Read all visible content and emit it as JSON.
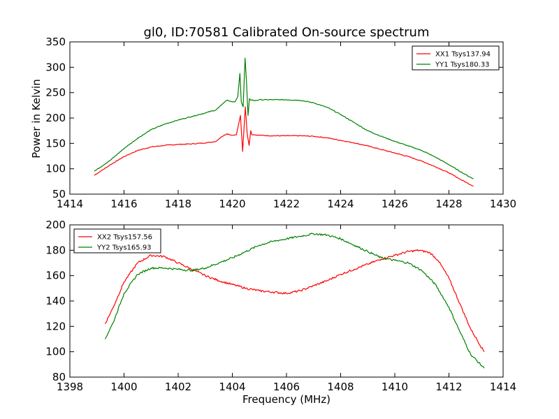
{
  "figure": {
    "title": "gl0, ID:70581 Calibrated On-source spectrum",
    "xlabel": "Frequency (MHz)",
    "ylabel": "Power in Kelvin"
  },
  "chart_data": [
    {
      "type": "line",
      "title": "gl0, ID:70581 Calibrated On-source spectrum",
      "xlabel": "",
      "ylabel": "Power in Kelvin",
      "xlim": [
        1414,
        1430
      ],
      "ylim": [
        50,
        350
      ],
      "xticks": [
        1414,
        1416,
        1418,
        1420,
        1422,
        1424,
        1426,
        1428,
        1430
      ],
      "yticks": [
        50,
        100,
        150,
        200,
        250,
        300,
        350
      ],
      "grid": false,
      "legend_position": "top-right",
      "series": [
        {
          "name": "XX1 Tsys137.94",
          "color": "#ff0000",
          "x": [
            1414.9,
            1415.5,
            1416.0,
            1416.5,
            1417.0,
            1417.5,
            1418.0,
            1418.5,
            1419.0,
            1419.4,
            1419.6,
            1419.8,
            1420.0,
            1420.15,
            1420.3,
            1420.38,
            1420.42,
            1420.48,
            1420.55,
            1420.62,
            1420.68,
            1420.72,
            1420.8,
            1421.0,
            1421.5,
            1422.0,
            1422.5,
            1423.0,
            1423.5,
            1424.0,
            1424.5,
            1425.0,
            1425.5,
            1426.0,
            1426.5,
            1427.0,
            1427.5,
            1428.0,
            1428.5,
            1428.9
          ],
          "y": [
            87,
            108,
            124,
            136,
            143,
            146,
            148,
            149,
            151,
            154,
            163,
            169,
            166,
            167,
            205,
            134,
            170,
            222,
            168,
            146,
            175,
            167,
            167,
            166,
            165,
            165,
            165,
            164,
            161,
            156,
            151,
            145,
            138,
            131,
            124,
            115,
            104,
            92,
            77,
            66
          ]
        },
        {
          "name": "YY1 Tsys180.33",
          "color": "#008000",
          "x": [
            1414.9,
            1415.5,
            1416.0,
            1416.5,
            1417.0,
            1417.5,
            1418.0,
            1418.5,
            1419.0,
            1419.4,
            1419.6,
            1419.8,
            1420.0,
            1420.1,
            1420.2,
            1420.28,
            1420.33,
            1420.4,
            1420.47,
            1420.52,
            1420.58,
            1420.63,
            1420.68,
            1420.73,
            1420.8,
            1421.0,
            1421.5,
            1422.0,
            1422.5,
            1423.0,
            1423.5,
            1424.0,
            1424.5,
            1425.0,
            1425.5,
            1426.0,
            1426.5,
            1427.0,
            1427.5,
            1428.0,
            1428.5,
            1428.9
          ],
          "y": [
            95,
            117,
            140,
            160,
            177,
            188,
            196,
            203,
            210,
            216,
            226,
            235,
            232,
            232,
            242,
            288,
            232,
            222,
            318,
            275,
            205,
            238,
            235,
            236,
            234,
            236,
            236,
            236,
            235,
            230,
            221,
            207,
            191,
            175,
            164,
            154,
            145,
            136,
            123,
            108,
            92,
            80
          ]
        }
      ]
    },
    {
      "type": "line",
      "title": "",
      "xlabel": "Frequency (MHz)",
      "ylabel": "",
      "xlim": [
        1398,
        1414
      ],
      "ylim": [
        80,
        200
      ],
      "xticks": [
        1398,
        1400,
        1402,
        1404,
        1406,
        1408,
        1410,
        1412,
        1414
      ],
      "yticks": [
        80,
        100,
        120,
        140,
        160,
        180,
        200
      ],
      "grid": false,
      "legend_position": "top-left",
      "series": [
        {
          "name": "XX2 Tsys157.56",
          "color": "#ff0000",
          "x": [
            1399.3,
            1399.6,
            1400.0,
            1400.5,
            1401.0,
            1401.5,
            1402.0,
            1402.5,
            1403.0,
            1403.5,
            1404.0,
            1404.5,
            1405.0,
            1405.5,
            1406.0,
            1406.5,
            1407.0,
            1407.5,
            1408.0,
            1408.5,
            1409.0,
            1409.5,
            1410.0,
            1410.5,
            1410.9,
            1411.3,
            1411.6,
            1412.0,
            1412.4,
            1412.8,
            1413.3
          ],
          "y": [
            122,
            135,
            155,
            170,
            176,
            175,
            170,
            165,
            160,
            156,
            153,
            150,
            148,
            147,
            146,
            148,
            152,
            156,
            161,
            165,
            169,
            173,
            176,
            179,
            180,
            178,
            172,
            158,
            138,
            118,
            100
          ]
        },
        {
          "name": "YY2 Tsys165.93",
          "color": "#008000",
          "x": [
            1399.3,
            1399.6,
            1400.0,
            1400.5,
            1401.0,
            1401.5,
            1402.0,
            1402.5,
            1403.0,
            1403.5,
            1404.0,
            1404.5,
            1405.0,
            1405.5,
            1406.0,
            1406.5,
            1407.0,
            1407.5,
            1408.0,
            1408.5,
            1409.0,
            1409.5,
            1410.0,
            1410.5,
            1411.0,
            1411.5,
            1412.0,
            1412.4,
            1412.8,
            1413.3
          ],
          "y": [
            110,
            123,
            146,
            161,
            166,
            166,
            165,
            164,
            166,
            170,
            174,
            179,
            184,
            187,
            189,
            191,
            193,
            192,
            189,
            184,
            179,
            174,
            172,
            170,
            164,
            153,
            135,
            116,
            98,
            87
          ]
        }
      ]
    }
  ]
}
